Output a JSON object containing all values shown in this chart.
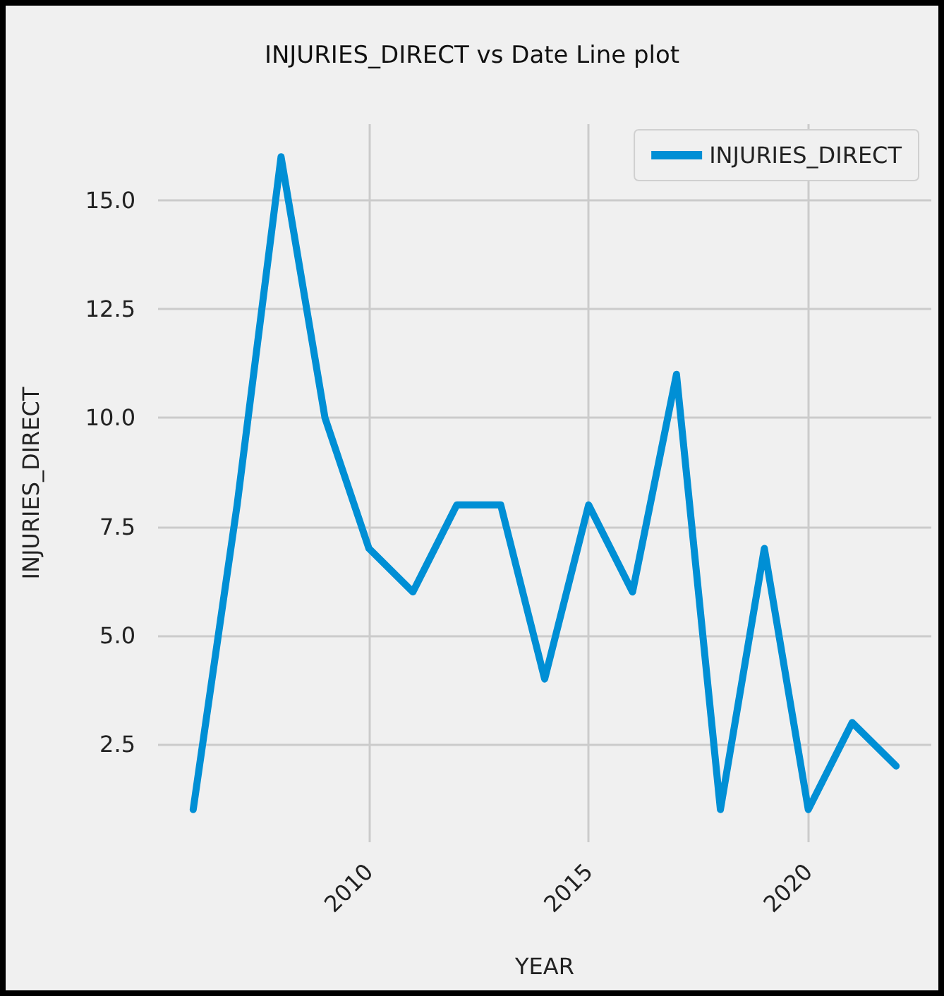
{
  "chart_data": {
    "type": "line",
    "title": "INJURIES_DIRECT vs Date Line plot",
    "xlabel": "YEAR",
    "ylabel": "INJURIES_DIRECT",
    "x": [
      2006,
      2007,
      2008,
      2009,
      2010,
      2011,
      2012,
      2013,
      2014,
      2015,
      2016,
      2017,
      2018,
      2019,
      2020,
      2021,
      2022
    ],
    "series": [
      {
        "name": "INJURIES_DIRECT",
        "color": "#008fd5",
        "values": [
          1,
          8,
          16,
          10,
          7,
          6,
          8,
          8,
          4,
          8,
          6,
          11,
          1,
          7,
          1,
          3,
          2
        ]
      }
    ],
    "xlim": [
      2005.2,
      2022.8
    ],
    "xticks": [
      2010,
      2015,
      2020
    ],
    "ylim": [
      0.25,
      16.75
    ],
    "yticks": [
      {
        "value": 2.5,
        "label": "2.5"
      },
      {
        "value": 5,
        "label": "5.0"
      },
      {
        "value": 7.5,
        "label": "7.5"
      },
      {
        "value": 10,
        "label": "10.0"
      },
      {
        "value": 12.5,
        "label": "12.5"
      },
      {
        "value": 15,
        "label": "15.0"
      }
    ],
    "grid": true,
    "legend": "top right",
    "marker": "none",
    "line_style": "solid"
  }
}
